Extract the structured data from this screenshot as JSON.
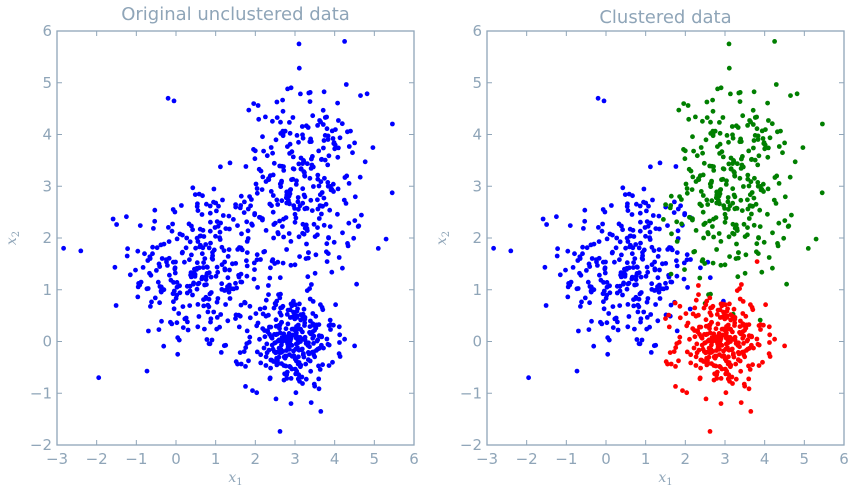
{
  "chart_data": [
    {
      "type": "scatter",
      "title": "Original unclustered data",
      "xlabel": "x",
      "xlabel_sub": "1",
      "ylabel": "x",
      "ylabel_sub": "2",
      "xlim": [
        -3,
        6
      ],
      "ylim": [
        -2,
        6
      ],
      "xticks": [
        -3,
        -2,
        -1,
        0,
        1,
        2,
        3,
        4,
        5,
        6
      ],
      "yticks": [
        -2,
        -1,
        0,
        1,
        2,
        3,
        4,
        5,
        6
      ],
      "grid": false,
      "legend": "none",
      "point_count": 900,
      "series": [
        {
          "color": "#0000ff",
          "points": 900
        }
      ]
    },
    {
      "type": "scatter",
      "title": "Clustered data",
      "xlabel": "x",
      "xlabel_sub": "1",
      "ylabel": "x",
      "ylabel_sub": "2",
      "xlim": [
        -3,
        6
      ],
      "ylim": [
        -2,
        6
      ],
      "xticks": [
        -3,
        -2,
        -1,
        0,
        1,
        2,
        3,
        4,
        5,
        6
      ],
      "yticks": [
        -2,
        -1,
        0,
        1,
        2,
        3,
        4,
        5,
        6
      ],
      "grid": false,
      "legend": "none",
      "series": [
        {
          "color": "#0000ff",
          "center": [
            0.6,
            1.4
          ],
          "spread": [
            0.85,
            0.85
          ],
          "points": 300
        },
        {
          "color": "#007f00",
          "center": [
            3.2,
            3.0
          ],
          "spread": [
            0.75,
            0.9
          ],
          "points": 300
        },
        {
          "color": "#ff0000",
          "center": [
            2.9,
            0.0
          ],
          "spread": [
            0.55,
            0.45
          ],
          "points": 300
        }
      ],
      "outliers": [
        {
          "x": -2.4,
          "y": 1.75,
          "color": "#0000ff"
        },
        {
          "x": -1.95,
          "y": -0.7,
          "color": "#0000ff"
        },
        {
          "x": -0.2,
          "y": 4.7,
          "color": "#0000ff"
        },
        {
          "x": -0.05,
          "y": 4.65,
          "color": "#0000ff"
        },
        {
          "x": 3.1,
          "y": 5.75,
          "color": "#007f00"
        },
        {
          "x": 4.25,
          "y": 5.8,
          "color": "#007f00"
        },
        {
          "x": 5.1,
          "y": 1.8,
          "color": "#007f00"
        },
        {
          "x": 2.9,
          "y": -1.2,
          "color": "#ff0000"
        }
      ]
    }
  ]
}
